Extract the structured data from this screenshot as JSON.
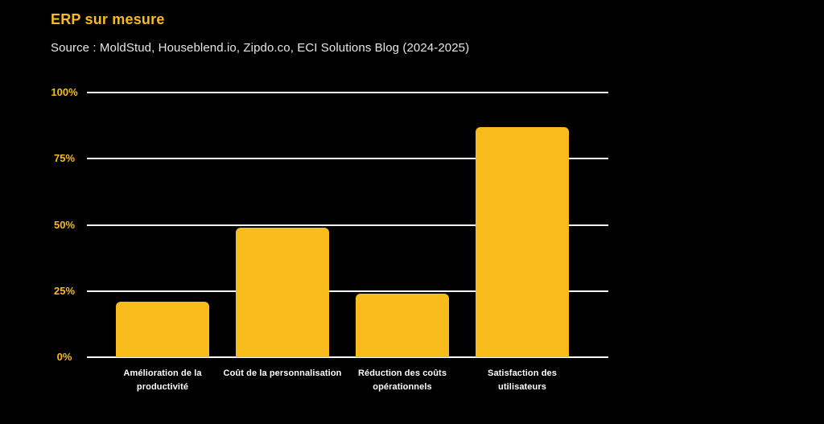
{
  "colors": {
    "background": "#000000",
    "accent": "#F8BC1D",
    "grid": "#FFFFFF",
    "source_text": "#E6E6E6",
    "category_text": "#FFFFFF"
  },
  "chart_data": {
    "type": "bar",
    "title": "ERP sur mesure",
    "source": "Source : MoldStud, Houseblend.io, Zipdo.co, ECI Solutions Blog (2024-2025)",
    "categories": [
      "Amélioration de la productivité",
      "Coût de la personnalisation",
      "Réduction des coûts opérationnels",
      "Satisfaction des utilisateurs"
    ],
    "category_lines": [
      [
        "Amélioration de la",
        "productivité"
      ],
      [
        "Coût de la personnalisation"
      ],
      [
        "Réduction des coûts",
        "opérationnels"
      ],
      [
        "Satisfaction des",
        "utilisateurs"
      ]
    ],
    "values": [
      21,
      49,
      24,
      87
    ],
    "unit": "%",
    "xlabel": "",
    "ylabel": "",
    "ylim": [
      0,
      100
    ],
    "ytick_values": [
      0,
      25,
      50,
      75,
      100
    ],
    "ytick_labels": [
      "0%",
      "25%",
      "50%",
      "75%",
      "100%"
    ],
    "grid": true,
    "legend": false,
    "bar_color": "#F8BC1D"
  }
}
